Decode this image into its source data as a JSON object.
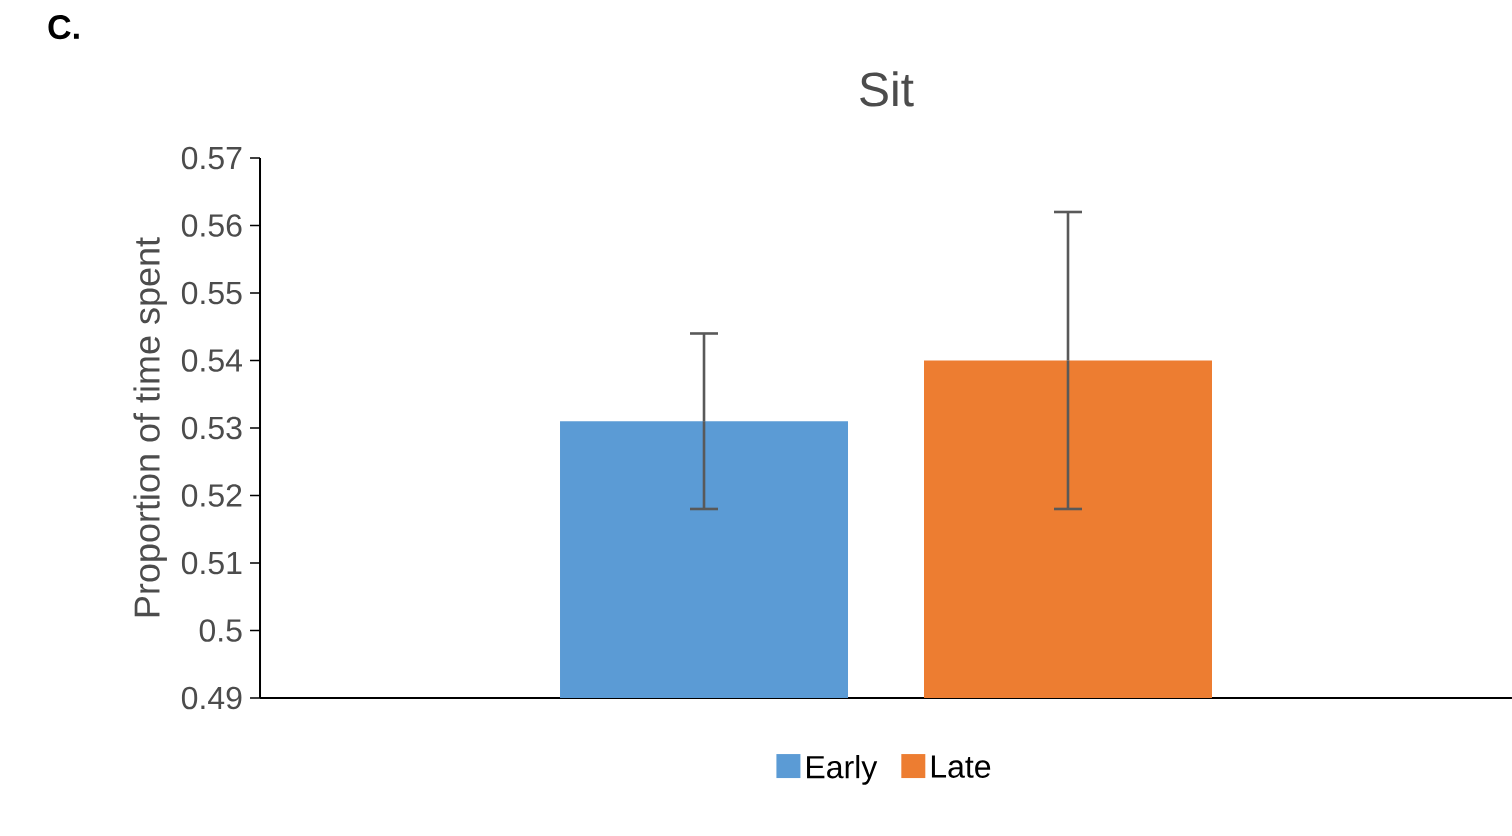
{
  "chart_data": {
    "type": "bar",
    "title": "Sit",
    "ylabel": "Proportion of time spent",
    "annotations": [
      "C."
    ],
    "categories": [
      null
    ],
    "series": [
      {
        "name": "Early",
        "color": "#5b9bd5",
        "values": [
          0.531
        ],
        "errors": [
          [
            0.518,
            0.544
          ]
        ]
      },
      {
        "name": "Late",
        "color": "#ed7d31",
        "values": [
          0.54
        ],
        "errors": [
          [
            0.518,
            0.562
          ]
        ]
      }
    ],
    "ylim": [
      0.49,
      0.57
    ],
    "yticks": [
      0.49,
      0.5,
      0.51,
      0.52,
      0.53,
      0.54,
      0.55,
      0.56,
      0.57
    ],
    "grid": false,
    "legend": "bottom"
  }
}
